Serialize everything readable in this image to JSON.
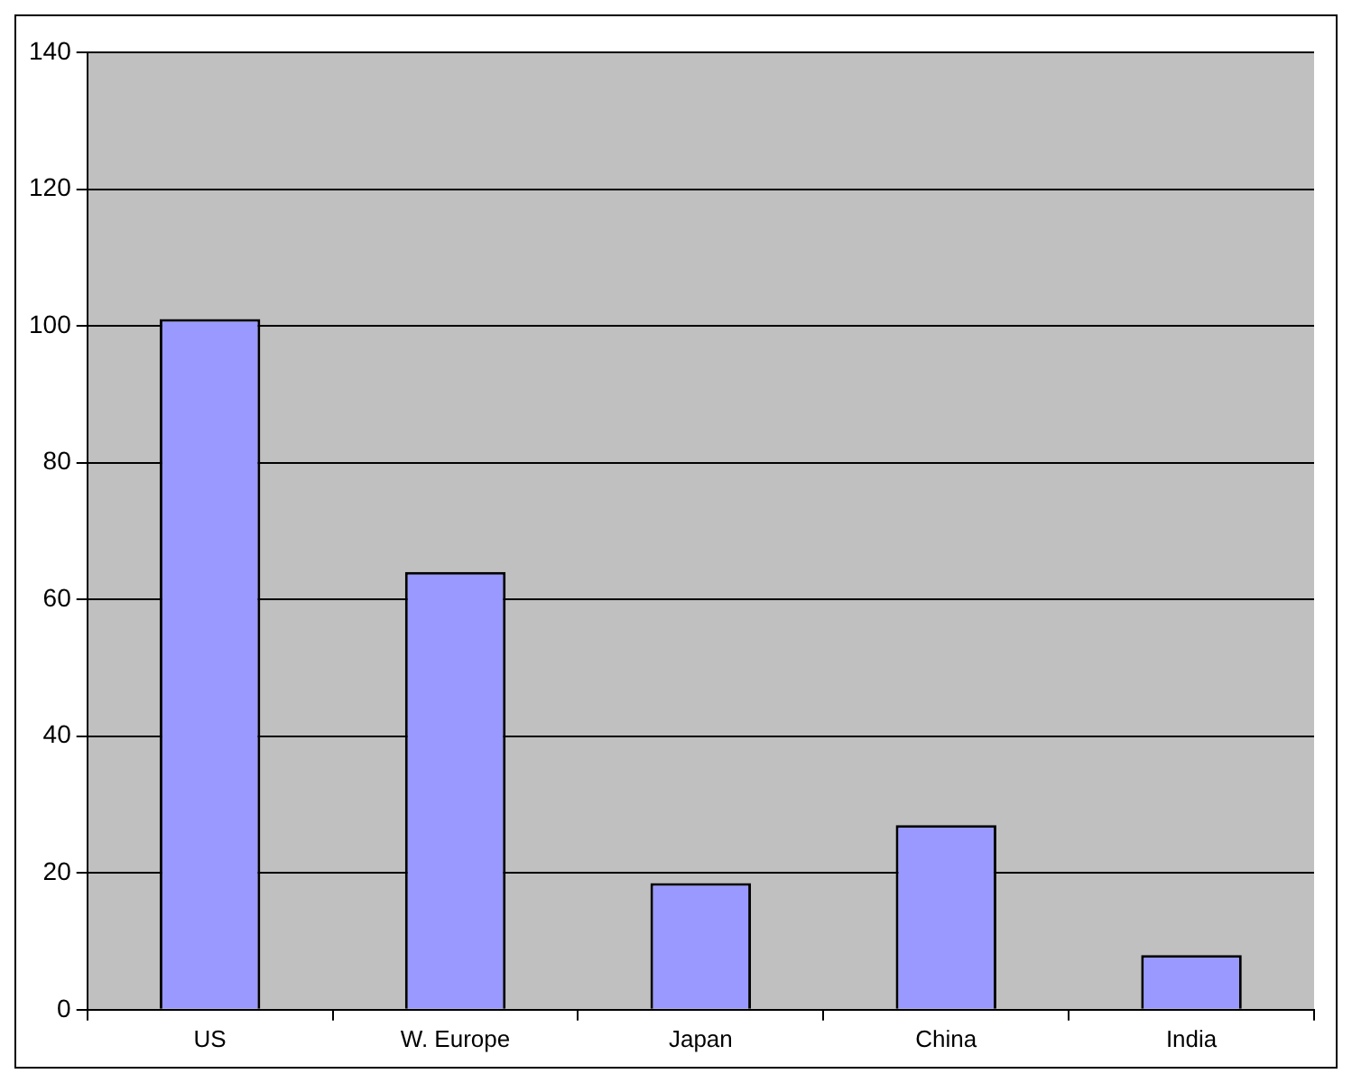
{
  "chart_data": {
    "type": "bar",
    "categories": [
      "US",
      "W. Europe",
      "Japan",
      "China",
      "India"
    ],
    "values": [
      101,
      64,
      18.5,
      27,
      8
    ],
    "color": "#9999ff",
    "ylim": [
      0,
      140
    ],
    "yticks": [
      0,
      20,
      40,
      60,
      80,
      100,
      120,
      140
    ],
    "grid": "y",
    "legend": false
  }
}
